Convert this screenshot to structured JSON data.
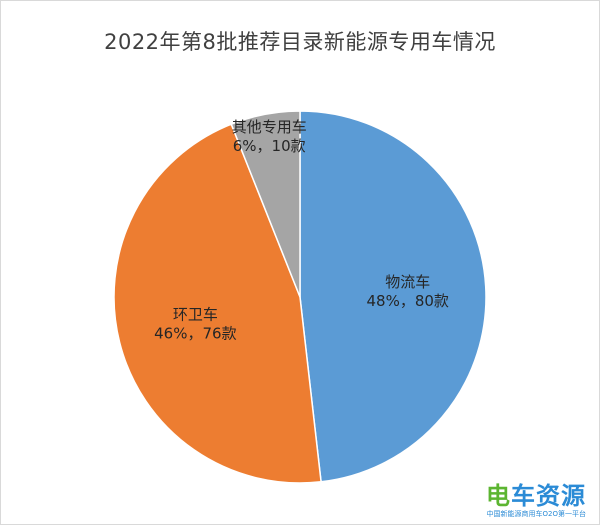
{
  "chart_data": {
    "type": "pie",
    "title": "2022年第8批推荐目录新能源专用车情况",
    "slices": [
      {
        "name": "物流车",
        "percent_label": "48%，80款",
        "value": 80,
        "color": "#5b9bd5"
      },
      {
        "name": "环卫车",
        "percent_label": "46%，76款",
        "value": 76,
        "color": "#ed7d31"
      },
      {
        "name": "其他专用车",
        "percent_label": "6%，10款",
        "value": 10,
        "color": "#a5a5a5"
      }
    ],
    "start": "12 o'clock, clockwise",
    "legend": "none"
  },
  "watermark": {
    "brand_part1": "电",
    "brand_part2": "车资源",
    "subtitle": "中国新能源商用车O2O第一平台"
  }
}
